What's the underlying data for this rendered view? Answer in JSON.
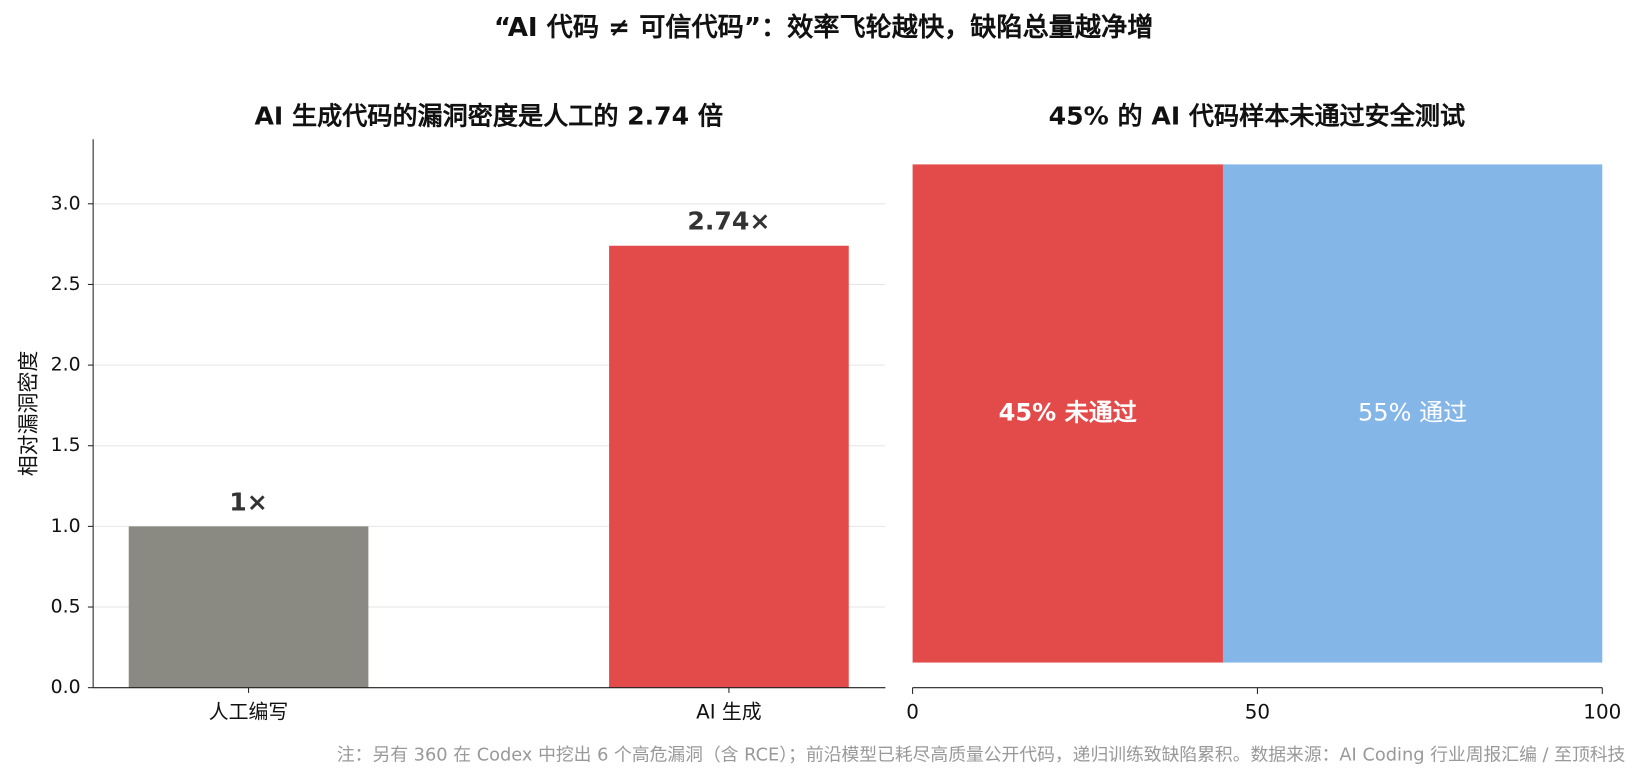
{
  "title": "“AI 代码 ≠ 可信代码”：效率飞轮越快，缺陷总量越净增",
  "note": "注：另有 360 在 Codex 中挖出 6 个高危漏洞（含 RCE）；前沿模型已耗尽高质量公开代码，递归训练致缺陷累积。数据来源：AI Coding 行业周报汇编 / 至顶科技",
  "chart_data": [
    {
      "type": "bar",
      "title": "AI 生成代码的漏洞密度是人工的 2.74 倍",
      "y_label": "相对漏洞密度",
      "categories": [
        "人工编写",
        "AI 生成"
      ],
      "values": [
        1,
        2.74
      ],
      "value_labels": [
        "1×",
        "2.74×"
      ],
      "colors": [
        "#8a8a82",
        "#e34a4a"
      ],
      "ylim": [
        0,
        3.4
      ],
      "yticks": [
        {
          "value": 0,
          "label": "0.0"
        },
        {
          "value": 0.5,
          "label": "0.5"
        },
        {
          "value": 1,
          "label": "1.0"
        },
        {
          "value": 1.5,
          "label": "1.5"
        },
        {
          "value": 2,
          "label": "2.0"
        },
        {
          "value": 2.5,
          "label": "2.5"
        },
        {
          "value": 3,
          "label": "3.0"
        }
      ],
      "grid": true
    },
    {
      "type": "stacked_barh",
      "title": "45% 的 AI 代码样本未通过安全测试",
      "series": [
        {
          "color": "#e34a4a",
          "values": [
            45
          ],
          "value_labels": [
            "45% 未通过"
          ]
        },
        {
          "color": "#85b6e8",
          "values": [
            55
          ],
          "value_labels": [
            "55% 通过"
          ]
        }
      ],
      "xlim": [
        0,
        100
      ],
      "xticks": [
        0,
        50,
        100
      ]
    }
  ]
}
